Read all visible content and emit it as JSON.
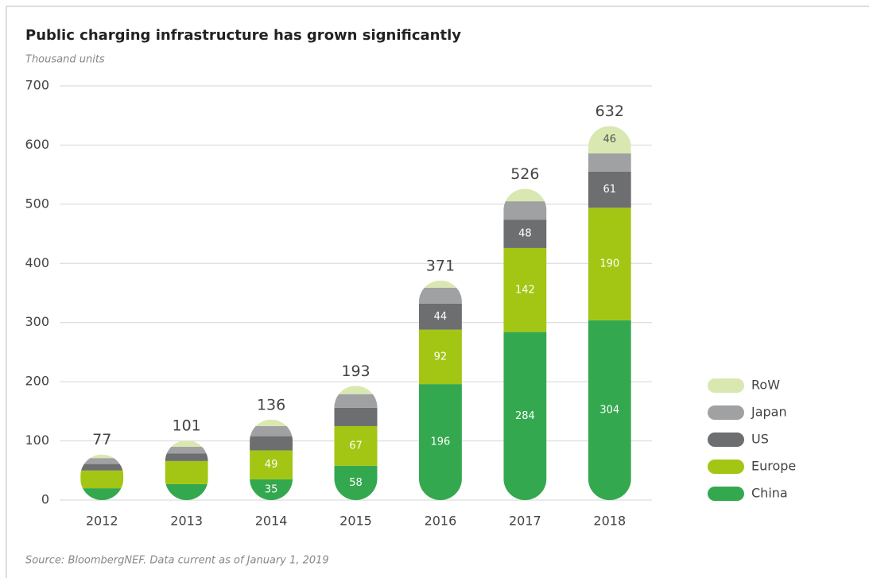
{
  "chart_data": {
    "type": "stacked_bar",
    "title": "Public charging infrastructure has grown significantly",
    "subtitle": "Thousand units",
    "source": "Source: BloombergNEF. Data current as of January 1, 2019",
    "categories": [
      "2012",
      "2013",
      "2014",
      "2015",
      "2016",
      "2017",
      "2018"
    ],
    "series": [
      {
        "name": "China",
        "color": "#34a84f",
        "values": [
          20,
          27,
          35,
          58,
          196,
          284,
          304
        ],
        "value_labels": [
          null,
          null,
          "35",
          "58",
          "196",
          "284",
          "304"
        ]
      },
      {
        "name": "Europe",
        "color": "#a3c614",
        "values": [
          30,
          39,
          49,
          67,
          92,
          142,
          190
        ],
        "value_labels": [
          null,
          null,
          "49",
          "67",
          "92",
          "142",
          "190"
        ]
      },
      {
        "name": "US",
        "color": "#6d6e70",
        "values": [
          11,
          13,
          24,
          31,
          44,
          48,
          61
        ],
        "value_labels": [
          null,
          null,
          null,
          null,
          "44",
          "48",
          "61"
        ]
      },
      {
        "name": "Japan",
        "color": "#a0a1a3",
        "values": [
          10,
          11,
          17,
          23,
          27,
          31,
          31
        ],
        "value_labels": [
          null,
          null,
          null,
          null,
          null,
          null,
          null
        ]
      },
      {
        "name": "RoW",
        "color": "#d9e8b0",
        "values": [
          6,
          11,
          11,
          14,
          12,
          21,
          46
        ],
        "value_labels": [
          null,
          null,
          null,
          null,
          null,
          null,
          "46"
        ]
      }
    ],
    "totals": [
      77,
      101,
      136,
      193,
      371,
      526,
      632
    ],
    "ylim": [
      0,
      700
    ],
    "yticks": [
      0,
      100,
      200,
      300,
      400,
      500,
      600,
      700
    ],
    "grid": true,
    "legend": "right"
  }
}
